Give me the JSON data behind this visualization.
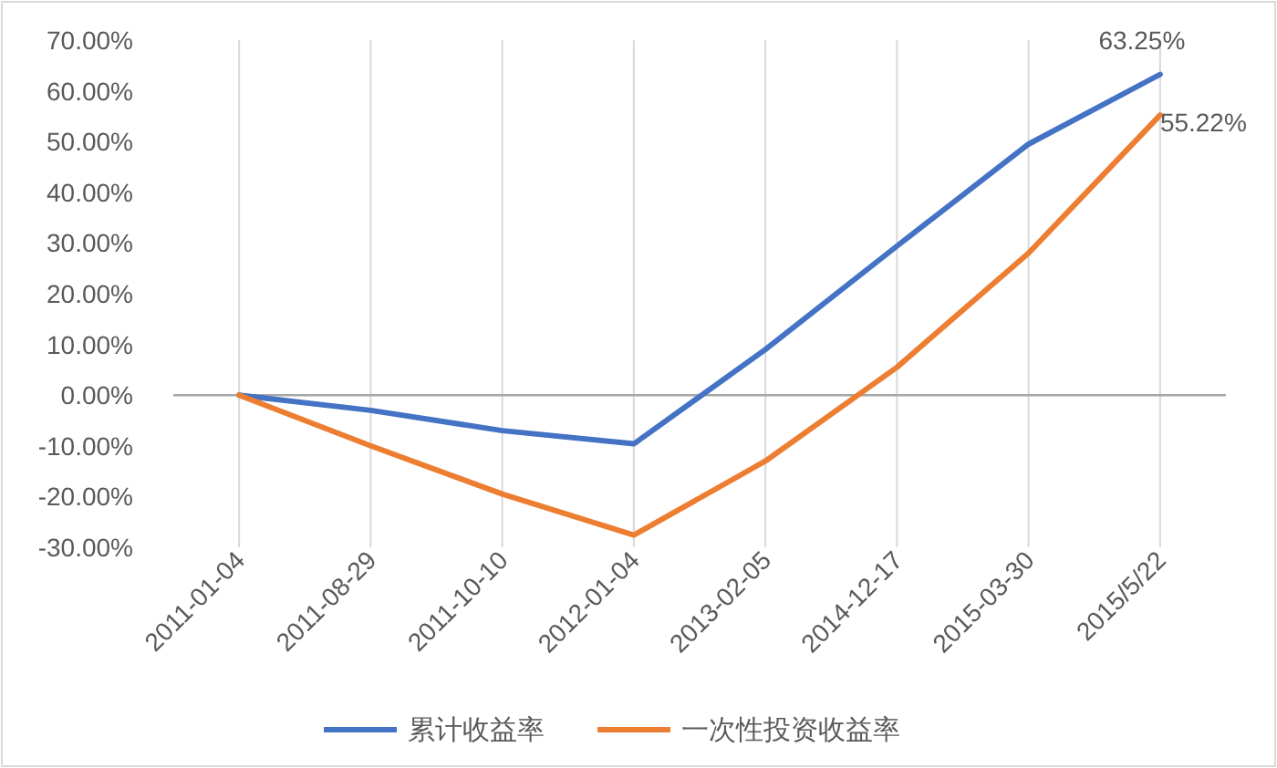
{
  "chart_data": {
    "type": "line",
    "categories": [
      "2011-01-04",
      "2011-08-29",
      "2011-10-10",
      "2012-01-04",
      "2013-02-05",
      "2014-12-17",
      "2015-03-30",
      "2015/5/22"
    ],
    "series": [
      {
        "name": "累计收益率",
        "color": "#4472c4",
        "values": [
          0,
          -3,
          -7,
          -9.6,
          9,
          29.4,
          49.5,
          63.25
        ],
        "value_labels": [
          null,
          null,
          null,
          null,
          null,
          null,
          null,
          "63.25%"
        ]
      },
      {
        "name": "一次性投资收益率",
        "color": "#ed7d31",
        "values": [
          0,
          -10,
          -19.5,
          -27.6,
          -13,
          5.5,
          28,
          55.22
        ],
        "value_labels": [
          null,
          null,
          null,
          null,
          null,
          null,
          null,
          "55.22%"
        ]
      }
    ],
    "ylim": [
      -30,
      70
    ],
    "yticks": [
      {
        "value": -30,
        "label": "-30.00%"
      },
      {
        "value": -20,
        "label": "-20.00%"
      },
      {
        "value": -10,
        "label": "-10.00%"
      },
      {
        "value": 0,
        "label": "0.00%"
      },
      {
        "value": 10,
        "label": "10.00%"
      },
      {
        "value": 20,
        "label": "20.00%"
      },
      {
        "value": 30,
        "label": "30.00%"
      },
      {
        "value": 40,
        "label": "40.00%"
      },
      {
        "value": 50,
        "label": "50.00%"
      },
      {
        "value": 60,
        "label": "60.00%"
      },
      {
        "value": 70,
        "label": "70.00%"
      }
    ],
    "grid": "x",
    "legend": "bottom",
    "marker": "none",
    "line_style": "solid"
  }
}
